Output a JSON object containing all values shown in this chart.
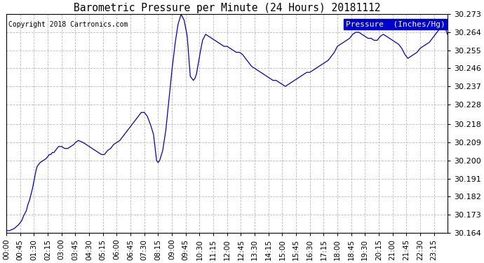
{
  "title": "Barometric Pressure per Minute (24 Hours) 20181112",
  "copyright": "Copyright 2018 Cartronics.com",
  "legend_label": "Pressure  (Inches/Hg)",
  "line_color": "#0000bb",
  "background_color": "#ffffff",
  "grid_color": "#bbbbbb",
  "ylim": [
    30.164,
    30.273
  ],
  "yticks": [
    30.164,
    30.173,
    30.182,
    30.191,
    30.2,
    30.209,
    30.218,
    30.228,
    30.237,
    30.246,
    30.255,
    30.264,
    30.273
  ],
  "xtick_labels": [
    "00:00",
    "00:45",
    "01:30",
    "02:15",
    "03:00",
    "03:45",
    "04:30",
    "05:15",
    "06:00",
    "06:45",
    "07:30",
    "08:15",
    "09:00",
    "09:45",
    "10:30",
    "11:15",
    "12:00",
    "12:45",
    "13:30",
    "14:15",
    "15:00",
    "15:45",
    "16:30",
    "17:15",
    "18:00",
    "18:45",
    "19:30",
    "20:15",
    "21:00",
    "21:45",
    "22:30",
    "23:15"
  ],
  "key_times": [
    0,
    10,
    25,
    40,
    50,
    55,
    65,
    70,
    75,
    80,
    85,
    90,
    95,
    100,
    110,
    120,
    130,
    135,
    140,
    145,
    150,
    155,
    160,
    165,
    170,
    180,
    190,
    200,
    210,
    220,
    225,
    235,
    250,
    260,
    270,
    280,
    290,
    300,
    310,
    315,
    320,
    325,
    330,
    340,
    345,
    350,
    360,
    370,
    380,
    390,
    400,
    420,
    440,
    450,
    455,
    460,
    470,
    480,
    490,
    495,
    500,
    510,
    520,
    530,
    540,
    550,
    560,
    570,
    580,
    590,
    600,
    610,
    615,
    620,
    630,
    640,
    650,
    660,
    670,
    680,
    690,
    700,
    710,
    720,
    730,
    740,
    750,
    760,
    770,
    775,
    780,
    790,
    800,
    810,
    820,
    830,
    840,
    850,
    860,
    870,
    880,
    890,
    900,
    910,
    920,
    930,
    940,
    950,
    960,
    970,
    980,
    990,
    1000,
    1010,
    1020,
    1030,
    1040,
    1050,
    1060,
    1070,
    1080,
    1090,
    1100,
    1110,
    1120,
    1125,
    1130,
    1140,
    1150,
    1160,
    1170,
    1180,
    1190,
    1200,
    1210,
    1215,
    1220,
    1230,
    1240,
    1250,
    1260,
    1270,
    1280,
    1290,
    1300,
    1305,
    1310,
    1320,
    1330,
    1340,
    1350,
    1360,
    1370,
    1380,
    1390,
    1395,
    1400,
    1410,
    1420,
    1430,
    1439
  ],
  "key_pressures": [
    30.165,
    30.165,
    30.166,
    30.168,
    30.17,
    30.172,
    30.175,
    30.178,
    30.18,
    30.183,
    30.186,
    30.19,
    30.194,
    30.197,
    30.199,
    30.2,
    30.201,
    30.202,
    30.203,
    30.203,
    30.204,
    30.204,
    30.205,
    30.206,
    30.207,
    30.207,
    30.206,
    30.206,
    30.207,
    30.208,
    30.209,
    30.21,
    30.209,
    30.208,
    30.207,
    30.206,
    30.205,
    30.204,
    30.203,
    30.203,
    30.203,
    30.204,
    30.205,
    30.206,
    30.207,
    30.208,
    30.209,
    30.21,
    30.212,
    30.214,
    30.216,
    30.22,
    30.224,
    30.224,
    30.223,
    30.222,
    30.218,
    30.213,
    30.2,
    30.199,
    30.2,
    30.205,
    30.215,
    30.23,
    30.245,
    30.258,
    30.268,
    30.273,
    30.27,
    30.262,
    30.242,
    30.24,
    30.241,
    30.243,
    30.252,
    30.26,
    30.263,
    30.262,
    30.261,
    30.26,
    30.259,
    30.258,
    30.257,
    30.257,
    30.256,
    30.255,
    30.254,
    30.254,
    30.253,
    30.252,
    30.251,
    30.249,
    30.247,
    30.246,
    30.245,
    30.244,
    30.243,
    30.242,
    30.241,
    30.24,
    30.24,
    30.239,
    30.238,
    30.237,
    30.238,
    30.239,
    30.24,
    30.241,
    30.242,
    30.243,
    30.244,
    30.244,
    30.245,
    30.246,
    30.247,
    30.248,
    30.249,
    30.25,
    30.252,
    30.254,
    30.257,
    30.258,
    30.259,
    30.26,
    30.261,
    30.262,
    30.263,
    30.264,
    30.264,
    30.263,
    30.262,
    30.261,
    30.261,
    30.26,
    30.26,
    30.261,
    30.262,
    30.263,
    30.262,
    30.261,
    30.26,
    30.259,
    30.258,
    30.256,
    30.253,
    30.252,
    30.251,
    30.252,
    30.253,
    30.254,
    30.256,
    30.257,
    30.258,
    30.259,
    30.261,
    30.262,
    30.263,
    30.265,
    30.268,
    30.267,
    30.263
  ]
}
